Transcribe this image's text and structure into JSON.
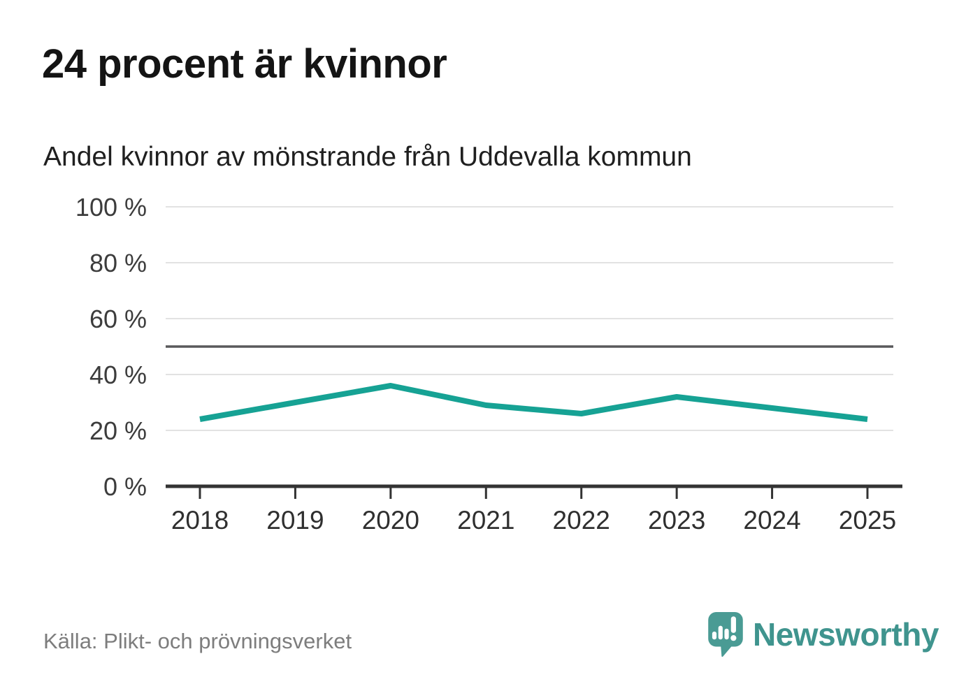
{
  "header": {
    "title": "24 procent är kvinnor",
    "subtitle": "Andel kvinnor av mönstrande från Uddevalla kommun"
  },
  "chart_data": {
    "type": "line",
    "title": "Andel kvinnor av mönstrande från Uddevalla kommun",
    "categories": [
      "2018",
      "2019",
      "2020",
      "2021",
      "2022",
      "2023",
      "2024",
      "2025"
    ],
    "series": [
      {
        "name": "Andel kvinnor av mönstrande",
        "values": [
          24,
          30,
          36,
          29,
          26,
          32,
          28,
          24
        ]
      }
    ],
    "unit": "%",
    "ylim": [
      0,
      100
    ],
    "yticks": [
      0,
      20,
      40,
      60,
      80,
      100
    ],
    "ytick_suffix": " %",
    "reference_line": 50,
    "grid": true,
    "legend": "none",
    "colors": {
      "line": "#16a294",
      "grid": "#e2e2e2",
      "reference": "#59595b",
      "axis": "#333333",
      "tick_label": "#3c3c3c",
      "x_label": "#2f2f2f"
    }
  },
  "footer": {
    "source": "Källa: Plikt- och prövningsverket",
    "brand": "Newsworthy",
    "brand_color": "#4a9b94"
  }
}
